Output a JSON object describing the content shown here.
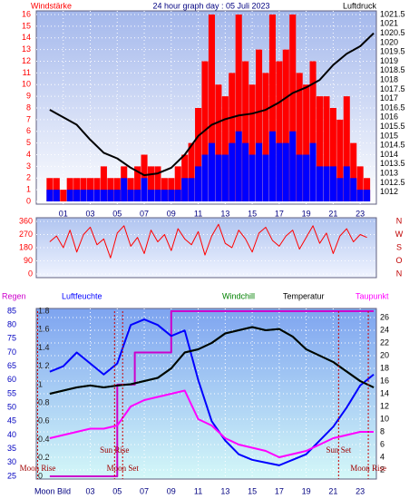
{
  "chart_data": [
    {
      "type": "bar",
      "title": "24 hour graph day : 05 Juli 2023",
      "ylabel": "Windstärke",
      "y2label": "Luftdruck",
      "xlim": [
        -1,
        24.2
      ],
      "xticks": [
        {
          "value": 1,
          "label": "01"
        },
        {
          "value": 3,
          "label": "03"
        },
        {
          "value": 5,
          "label": "05"
        },
        {
          "value": 7,
          "label": "07"
        },
        {
          "value": 9,
          "label": "09"
        },
        11,
        13,
        15,
        17,
        19,
        21,
        23
      ],
      "ylim": [
        0,
        16
      ],
      "yticks": [
        0,
        1,
        2,
        3,
        4,
        5,
        6,
        7,
        8,
        9,
        10,
        11,
        12,
        13,
        14,
        15,
        16
      ],
      "y2lim": [
        1011.5,
        1021.5
      ],
      "y2ticks": [
        1012,
        1012.5,
        1013,
        1013.5,
        1014,
        1014.5,
        1015,
        1015.5,
        1016,
        1016.5,
        1017,
        1017.5,
        1018,
        1018.5,
        1019,
        1019.5,
        1020,
        1020.5,
        1021,
        1021.5
      ],
      "grid": true,
      "series": [
        {
          "type": "bar",
          "color": "#ff0000",
          "x": [
            0,
            0.5,
            1,
            1.5,
            2,
            2.5,
            3,
            3.5,
            4,
            4.5,
            5,
            5.5,
            6,
            6.5,
            7,
            7.5,
            8,
            8.5,
            9,
            9.5,
            10,
            10.5,
            11,
            11.5,
            12,
            12.5,
            13,
            13.5,
            14,
            14.5,
            15,
            15.5,
            16,
            16.5,
            17,
            17.5,
            18,
            18.5,
            19,
            19.5,
            20,
            20.5,
            21,
            21.5,
            22,
            22.5,
            23,
            23.5
          ],
          "values": [
            2,
            2,
            1,
            2,
            2,
            2,
            2,
            2,
            3,
            2,
            2,
            3,
            2,
            3,
            4,
            3,
            3,
            2,
            2,
            3,
            4,
            5,
            8,
            12,
            16,
            10,
            9,
            11,
            16,
            12,
            10,
            13,
            11,
            16,
            12,
            13,
            16,
            11,
            10,
            12,
            9,
            9,
            8,
            7,
            9,
            5,
            3,
            2
          ]
        },
        {
          "type": "bar",
          "color": "#0000ff",
          "x": [
            0,
            0.5,
            1,
            1.5,
            2,
            2.5,
            3,
            3.5,
            4,
            4.5,
            5,
            5.5,
            6,
            6.5,
            7,
            7.5,
            8,
            8.5,
            9,
            9.5,
            10,
            10.5,
            11,
            11.5,
            12,
            12.5,
            13,
            13.5,
            14,
            14.5,
            15,
            15.5,
            16,
            16.5,
            17,
            17.5,
            18,
            18.5,
            19,
            19.5,
            20,
            20.5,
            21,
            21.5,
            22,
            22.5,
            23,
            23.5
          ],
          "values": [
            1,
            1,
            0,
            1,
            1,
            1,
            1,
            1,
            1,
            1,
            1,
            2,
            1,
            1,
            2,
            1,
            1,
            1,
            1,
            1,
            2,
            2,
            3,
            4,
            5,
            4,
            4,
            5,
            6,
            5,
            4,
            5,
            4,
            6,
            5,
            5,
            6,
            4,
            4,
            5,
            3,
            3,
            3,
            2,
            3,
            2,
            1,
            1
          ]
        },
        {
          "type": "line",
          "axis": "y2",
          "color": "#000000",
          "x": [
            0,
            1,
            2,
            3,
            4,
            5,
            6,
            7,
            8,
            9,
            10,
            11,
            12,
            13,
            14,
            15,
            16,
            17,
            18,
            19,
            20,
            21,
            22,
            23,
            24
          ],
          "values": [
            1016.4,
            1016.0,
            1015.6,
            1014.8,
            1014.1,
            1013.8,
            1013.3,
            1012.9,
            1013.0,
            1013.3,
            1014.0,
            1015.0,
            1015.6,
            1015.9,
            1016.1,
            1016.2,
            1016.4,
            1016.8,
            1017.3,
            1017.6,
            1018.0,
            1018.8,
            1019.4,
            1019.8,
            1020.5
          ]
        }
      ]
    },
    {
      "type": "line",
      "xlim": [
        -1,
        24.2
      ],
      "ylim": [
        0,
        360
      ],
      "yticks": [
        0,
        90,
        180,
        270,
        360
      ],
      "y2lim": [
        0,
        360
      ],
      "y2ticks": [
        {
          "value": 0,
          "label": "N"
        },
        {
          "value": 90,
          "label": "O"
        },
        {
          "value": 180,
          "label": "S"
        },
        {
          "value": 270,
          "label": "W"
        },
        {
          "value": 360,
          "label": "N"
        }
      ],
      "grid": true,
      "series": [
        {
          "type": "line",
          "color": "#ff0000",
          "x": [
            0,
            0.5,
            1,
            1.5,
            2,
            2.5,
            3,
            3.5,
            4,
            4.5,
            5,
            5.5,
            6,
            6.5,
            7,
            7.5,
            8,
            8.5,
            9,
            9.5,
            10,
            10.5,
            11,
            11.5,
            12,
            12.5,
            13,
            13.5,
            14,
            14.5,
            15,
            15.5,
            16,
            16.5,
            17,
            17.5,
            18,
            18.5,
            19,
            19.5,
            20,
            20.5,
            21,
            21.5,
            22,
            22.5,
            23,
            23.5
          ],
          "values": [
            220,
            260,
            180,
            300,
            150,
            270,
            320,
            200,
            240,
            110,
            280,
            330,
            190,
            250,
            140,
            300,
            220,
            270,
            160,
            310,
            240,
            200,
            290,
            130,
            260,
            340,
            210,
            180,
            300,
            240,
            150,
            280,
            320,
            230,
            190,
            260,
            300,
            170,
            250,
            330,
            210,
            280,
            140,
            260,
            310,
            220,
            270,
            250
          ]
        }
      ]
    },
    {
      "type": "line",
      "xlabel": "Moon Bild",
      "xlim": [
        -1,
        24.2
      ],
      "xticks": [
        {
          "value": 3,
          "label": "03"
        },
        {
          "value": 5,
          "label": "05"
        },
        {
          "value": 7,
          "label": "07"
        },
        {
          "value": 9,
          "label": "09"
        },
        11,
        13,
        15,
        17,
        19,
        21,
        23
      ],
      "ylim": [
        25,
        85
      ],
      "yticks": [
        25,
        30,
        35,
        40,
        45,
        50,
        55,
        60,
        65,
        70,
        75,
        80,
        85
      ],
      "y2lim": [
        1,
        27
      ],
      "y2ticks": [
        2,
        4,
        6,
        8,
        10,
        12,
        14,
        16,
        18,
        20,
        22,
        24,
        26
      ],
      "y3lim": [
        0,
        1.8
      ],
      "y3ticks": [
        0,
        0.2,
        0.4,
        0.6,
        0.8,
        1,
        1.2,
        1.4,
        1.6,
        1.8
      ],
      "grid": true,
      "series": [
        {
          "name": "Regen",
          "type": "step",
          "axis": "y3",
          "color": "#cc00cc",
          "x": [
            0,
            4.7,
            5,
            6.3,
            9,
            24
          ],
          "values": [
            0,
            0,
            1.0,
            1.35,
            1.8,
            1.8
          ]
        },
        {
          "name": "Luftfeuchte",
          "type": "line",
          "axis": "y",
          "color": "#0000ff",
          "x": [
            0,
            1,
            2,
            3,
            4,
            5,
            6,
            7,
            8,
            9,
            10,
            11,
            12,
            13,
            14,
            15,
            16,
            17,
            18,
            19,
            20,
            21,
            22,
            23,
            24
          ],
          "values": [
            63,
            65,
            70,
            66,
            62,
            66,
            80,
            82,
            80,
            76,
            78,
            60,
            45,
            38,
            33,
            31,
            30,
            29,
            31,
            33,
            38,
            43,
            50,
            58,
            62
          ]
        },
        {
          "name": "Windchill",
          "type": "line",
          "axis": "y2",
          "color": "#008000",
          "x": [
            0,
            1,
            2,
            3,
            4,
            5,
            6,
            7,
            8,
            9,
            10,
            11,
            12,
            13,
            14,
            15,
            16,
            17,
            18,
            19,
            20,
            21,
            22,
            23,
            24
          ],
          "values": [
            14,
            14.5,
            15,
            15.3,
            15,
            15.3,
            15.5,
            16,
            16.5,
            18,
            20.5,
            21,
            22,
            23.5,
            24,
            24.5,
            24,
            24.2,
            23,
            21,
            20,
            19,
            17.5,
            16,
            15
          ]
        },
        {
          "name": "Temperatur",
          "type": "line",
          "axis": "y2",
          "color": "#000000",
          "x": [
            0,
            1,
            2,
            3,
            4,
            5,
            6,
            7,
            8,
            9,
            10,
            11,
            12,
            13,
            14,
            15,
            16,
            17,
            18,
            19,
            20,
            21,
            22,
            23,
            24
          ],
          "values": [
            14,
            14.5,
            15,
            15.3,
            15,
            15.3,
            15.5,
            16,
            16.5,
            18,
            20.5,
            21,
            22,
            23.5,
            24,
            24.5,
            24,
            24.2,
            23,
            21,
            20,
            19,
            17.5,
            16,
            15
          ]
        },
        {
          "name": "Taupunkt",
          "type": "line",
          "axis": "y2",
          "color": "#ff00ff",
          "x": [
            0,
            1,
            2,
            3,
            4,
            5,
            6,
            7,
            8,
            9,
            10,
            11,
            12,
            13,
            14,
            15,
            16,
            17,
            18,
            19,
            20,
            21,
            22,
            23,
            24
          ],
          "values": [
            7,
            7.5,
            8,
            8.5,
            8.5,
            9,
            12,
            13,
            13.5,
            14,
            14.5,
            10,
            9,
            7,
            6,
            5.5,
            5,
            4,
            4.5,
            5,
            6,
            7,
            7.5,
            8,
            8
          ]
        }
      ],
      "annotations": [
        {
          "text": "Moon Rise",
          "x": -0.9
        },
        {
          "text": "Sun Rise",
          "x": 4.8
        },
        {
          "text": "Moon Set",
          "x": 5.4
        },
        {
          "text": "Sun Set",
          "x": 21.4
        },
        {
          "text": "Moon Rise",
          "x": 23.6
        }
      ]
    }
  ]
}
